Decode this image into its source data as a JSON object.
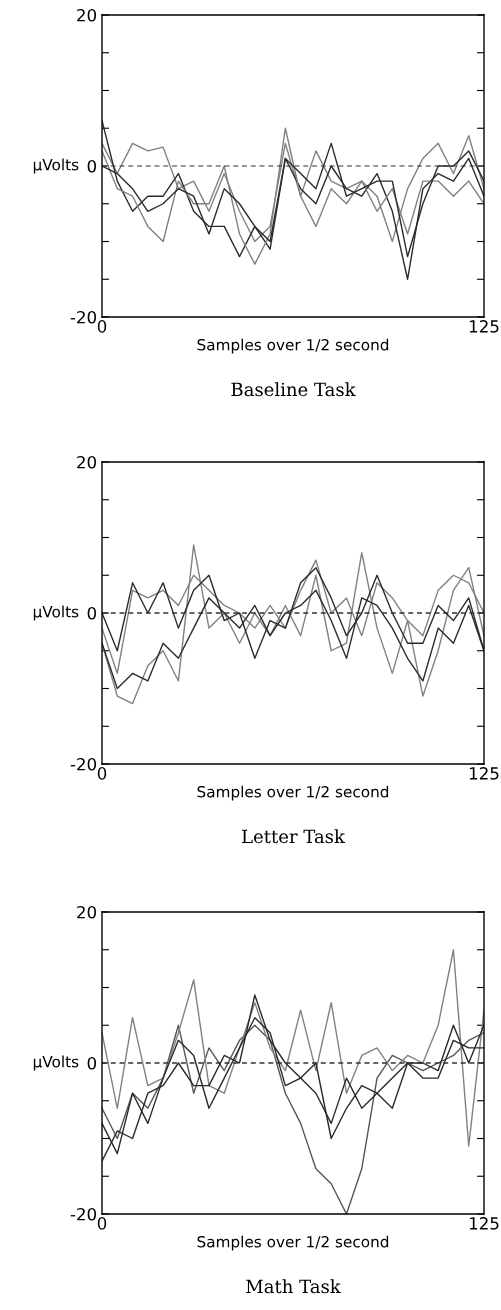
{
  "chart_data": [
    {
      "type": "line",
      "title": "Baseline Task",
      "xlabel": "Samples over 1/2 second",
      "ylabel": "μVolts",
      "xlim": [
        0,
        125
      ],
      "ylim": [
        -20,
        20
      ],
      "xticks": [
        0,
        125
      ],
      "yticks": [
        -20,
        {
          "value": -15,
          "label": null
        },
        {
          "value": -10,
          "label": null
        },
        {
          "value": -5,
          "label": null
        },
        0,
        {
          "value": 5,
          "label": null
        },
        {
          "value": 10,
          "label": null
        },
        {
          "value": 15,
          "label": null
        },
        20
      ],
      "x": [
        0,
        5,
        10,
        15,
        20,
        25,
        30,
        35,
        40,
        45,
        50,
        55,
        60,
        65,
        70,
        75,
        80,
        85,
        90,
        95,
        100,
        105,
        110,
        115,
        120,
        125
      ],
      "grid": false,
      "legend": false,
      "marker": "none",
      "line_style": "solid",
      "ref_lines": [
        {
          "axis": "y",
          "value": 0,
          "line_style": "dashed",
          "color": "#333333"
        }
      ],
      "series": [
        {
          "color": "#808080",
          "values": [
            3,
            -1,
            3,
            2,
            2.5,
            -3,
            -2,
            -6,
            -1,
            -6,
            -10,
            -8,
            3,
            -4,
            2,
            -2,
            -3,
            -2,
            -4,
            -10,
            -3,
            1,
            3,
            -1,
            4,
            -3
          ]
        },
        {
          "color": "#2a2a2a",
          "values": [
            6,
            -2,
            -6,
            -4,
            -4,
            -1,
            -6,
            -8,
            -8,
            -12,
            -8,
            -11,
            1,
            -3,
            -5,
            0,
            -3,
            -4,
            -1,
            -6,
            -15,
            -3,
            -1,
            -2,
            1,
            -4
          ]
        },
        {
          "color": "#808080",
          "values": [
            2,
            -3,
            -4,
            -8,
            -10,
            -2,
            -5,
            -5,
            0,
            -9,
            -13,
            -9,
            5,
            -4,
            -8,
            -3,
            -5,
            -2,
            -6,
            -3,
            -9,
            -2,
            -2,
            -4,
            -2,
            -5
          ]
        },
        {
          "color": "#2a2a2a",
          "values": [
            0,
            -1,
            -3,
            -6,
            -5,
            -3,
            -4,
            -9,
            -3,
            -5,
            -8,
            -10,
            1,
            -1,
            -3,
            3,
            -4,
            -3,
            -2,
            -2,
            -12,
            -5,
            0,
            0,
            2,
            -2
          ]
        }
      ]
    },
    {
      "type": "line",
      "title": "Letter Task",
      "xlabel": "Samples over 1/2 second",
      "ylabel": "μVolts",
      "xlim": [
        0,
        125
      ],
      "ylim": [
        -20,
        20
      ],
      "xticks": [
        0,
        125
      ],
      "yticks": [
        -20,
        {
          "value": -15,
          "label": null
        },
        {
          "value": -10,
          "label": null
        },
        {
          "value": -5,
          "label": null
        },
        0,
        {
          "value": 5,
          "label": null
        },
        {
          "value": 10,
          "label": null
        },
        {
          "value": 15,
          "label": null
        },
        20
      ],
      "x": [
        0,
        5,
        10,
        15,
        20,
        25,
        30,
        35,
        40,
        45,
        50,
        55,
        60,
        65,
        70,
        75,
        80,
        85,
        90,
        95,
        100,
        105,
        110,
        115,
        120,
        125
      ],
      "grid": false,
      "legend": false,
      "marker": "none",
      "line_style": "solid",
      "ref_lines": [
        {
          "axis": "y",
          "value": 0,
          "line_style": "dashed",
          "color": "#333333"
        }
      ],
      "series": [
        {
          "color": "#808080",
          "values": [
            -2,
            -8,
            3,
            2,
            3,
            1,
            5,
            3,
            1,
            0,
            -2,
            1,
            -2,
            3,
            7,
            0,
            2,
            -3,
            4,
            2,
            -1,
            -3,
            3,
            5,
            4,
            0
          ]
        },
        {
          "color": "#808080",
          "values": [
            -4,
            -11,
            -12,
            -7,
            -5,
            -9,
            9,
            -2,
            0,
            -4,
            0,
            -3,
            1,
            -3,
            5,
            -5,
            -4,
            8,
            -2,
            -8,
            -1,
            -11,
            -5,
            3,
            6,
            -3
          ]
        },
        {
          "color": "#2a2a2a",
          "values": [
            0,
            -5,
            4,
            0,
            4,
            -2,
            3,
            5,
            -1,
            0,
            -6,
            -1,
            -2,
            4,
            6,
            2,
            -3,
            0,
            5,
            0,
            -4,
            -4,
            1,
            -1,
            2,
            -5
          ]
        },
        {
          "color": "#2a2a2a",
          "values": [
            -4,
            -10,
            -8,
            -9,
            -4,
            -6,
            -2,
            2,
            0,
            -2,
            1,
            -3,
            0,
            1,
            3,
            -1,
            -6,
            2,
            1,
            -2,
            -6,
            -9,
            -2,
            -4,
            1,
            -5
          ]
        }
      ]
    },
    {
      "type": "line",
      "title": "Math Task",
      "xlabel": "Samples over 1/2 second",
      "ylabel": "μVolts",
      "xlim": [
        0,
        125
      ],
      "ylim": [
        -20,
        20
      ],
      "xticks": [
        0,
        125
      ],
      "yticks": [
        -20,
        {
          "value": -15,
          "label": null
        },
        {
          "value": -10,
          "label": null
        },
        {
          "value": -5,
          "label": null
        },
        0,
        {
          "value": 5,
          "label": null
        },
        {
          "value": 10,
          "label": null
        },
        {
          "value": 15,
          "label": null
        },
        20
      ],
      "x": [
        0,
        5,
        10,
        15,
        20,
        25,
        30,
        35,
        40,
        45,
        50,
        55,
        60,
        65,
        70,
        75,
        80,
        85,
        90,
        95,
        100,
        105,
        110,
        115,
        120,
        125
      ],
      "grid": false,
      "legend": false,
      "marker": "none",
      "line_style": "solid",
      "ref_lines": [
        {
          "axis": "y",
          "value": 0,
          "line_style": "dashed",
          "color": "#333333"
        }
      ],
      "series": [
        {
          "color": "#555555",
          "values": [
            -6,
            -10,
            -4,
            -6,
            -2,
            5,
            -4,
            2,
            -1,
            3,
            5,
            3,
            -4,
            -8,
            -14,
            -16,
            -20,
            -14,
            -2,
            1,
            0,
            -1,
            0,
            1,
            3,
            4
          ]
        },
        {
          "color": "#808080",
          "values": [
            4,
            -6,
            6,
            -3,
            -2,
            4,
            11,
            -3,
            -4,
            2,
            8,
            2,
            -1,
            7,
            -1,
            8,
            -4,
            1,
            2,
            -1,
            1,
            0,
            5,
            15,
            -11,
            7
          ]
        },
        {
          "color": "#2a2a2a",
          "values": [
            -8,
            -12,
            -4,
            -8,
            -2,
            3,
            1,
            -6,
            -2,
            2,
            6,
            4,
            -3,
            -2,
            -4,
            -8,
            -2,
            -6,
            -4,
            -6,
            0,
            0,
            -1,
            5,
            0,
            5
          ]
        },
        {
          "color": "#2a2a2a",
          "values": [
            -13,
            -9,
            -10,
            -4,
            -3,
            0,
            -3,
            -3,
            1,
            0,
            9,
            3,
            0,
            -2,
            0,
            -10,
            -6,
            -3,
            -4,
            -2,
            0,
            -2,
            -2,
            3,
            2,
            2
          ]
        }
      ]
    }
  ]
}
